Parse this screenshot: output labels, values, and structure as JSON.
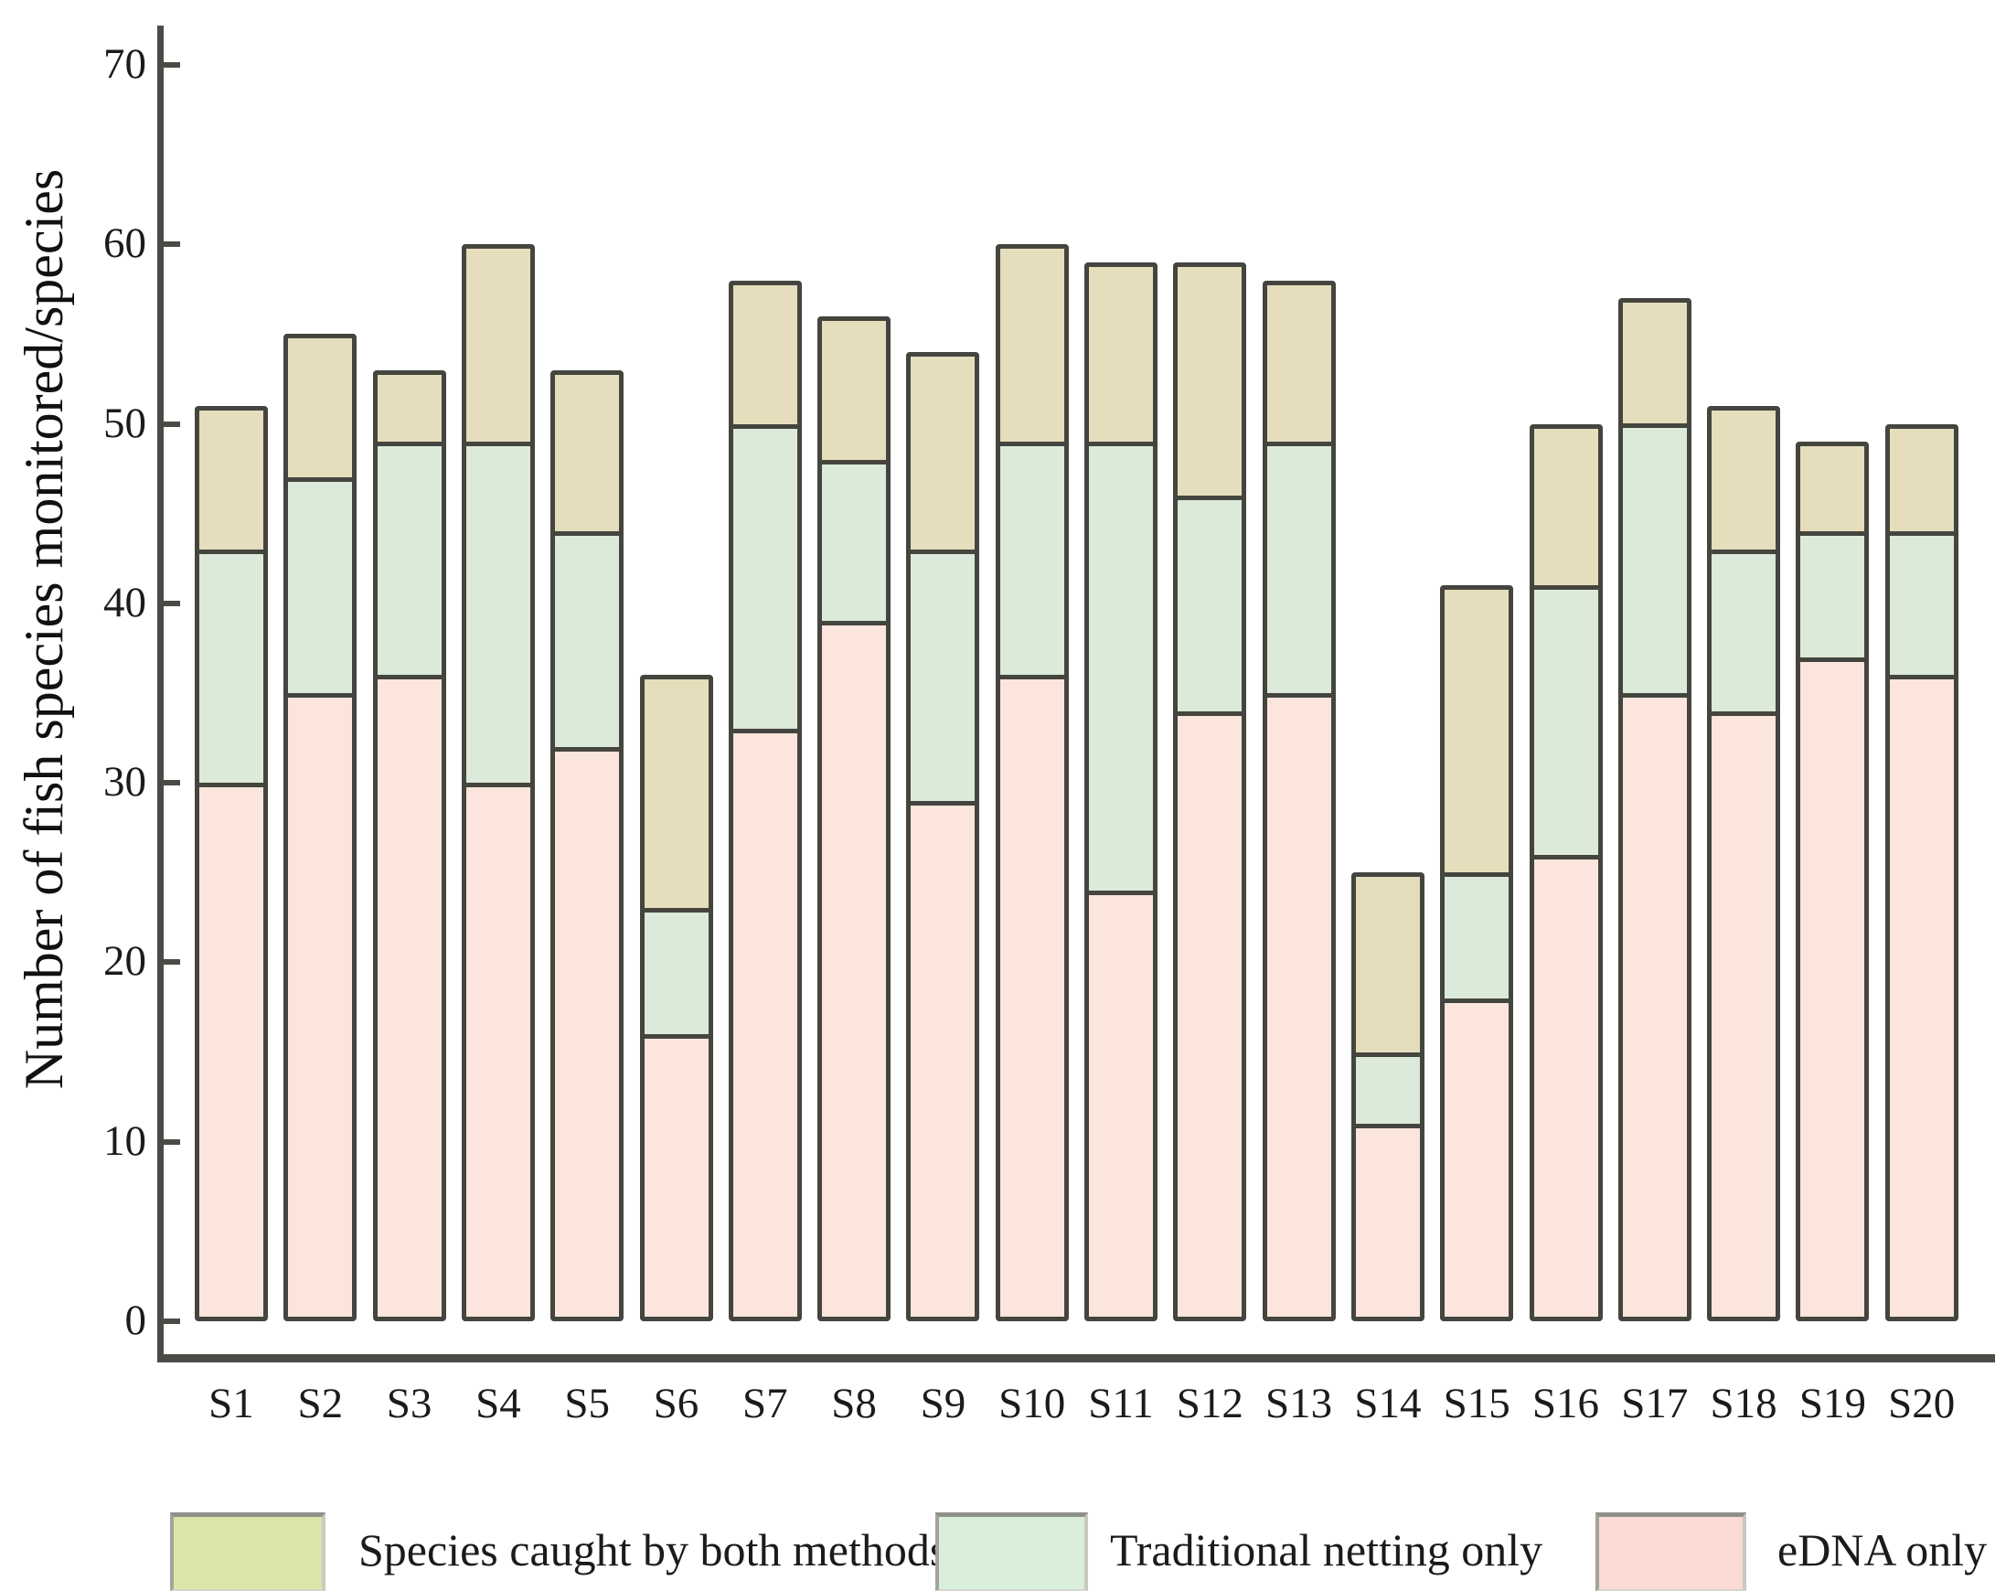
{
  "chart_data": {
    "type": "bar",
    "stacked": true,
    "title": "",
    "xlabel": "",
    "ylabel": "Number of fish species monitored/species",
    "ylim": [
      0,
      70
    ],
    "yticks": [
      0,
      10,
      20,
      30,
      40,
      50,
      60,
      70
    ],
    "grid": false,
    "legend_position": "bottom",
    "categories": [
      "S1",
      "S2",
      "S3",
      "S4",
      "S5",
      "S6",
      "S7",
      "S8",
      "S9",
      "S10",
      "S11",
      "S12",
      "S13",
      "S14",
      "S15",
      "S16",
      "S17",
      "S18",
      "S19",
      "S20"
    ],
    "series": [
      {
        "name": "eDNA only",
        "stack_order": "bottom",
        "bar_color": "#fbe5dc",
        "values": [
          30,
          35,
          36,
          30,
          32,
          16,
          33,
          39,
          29,
          36,
          24,
          34,
          35,
          11,
          18,
          26,
          35,
          34,
          37,
          36
        ]
      },
      {
        "name": "Traditional netting only",
        "stack_order": "middle",
        "bar_color": "#dcead9",
        "values": [
          13,
          12,
          13,
          19,
          12,
          7,
          17,
          9,
          14,
          13,
          25,
          12,
          14,
          4,
          7,
          15,
          15,
          9,
          7,
          8
        ]
      },
      {
        "name": "Species caught by both methods",
        "stack_order": "top",
        "bar_color": "#e5ddbb",
        "values": [
          8,
          8,
          4,
          11,
          9,
          13,
          8,
          8,
          11,
          11,
          10,
          13,
          9,
          10,
          16,
          9,
          7,
          8,
          5,
          6
        ]
      }
    ],
    "stack_totals": [
      51,
      55,
      53,
      60,
      53,
      36,
      58,
      56,
      54,
      60,
      59,
      59,
      58,
      25,
      41,
      50,
      57,
      51,
      49,
      50
    ],
    "legend": [
      {
        "label": "Species caught by both methods",
        "swatch_color": "#dde4aa"
      },
      {
        "label": "Traditional netting only",
        "swatch_color": "#d9eedb"
      },
      {
        "label": "eDNA only",
        "swatch_color": "#fbd9d4"
      }
    ],
    "colors": {
      "bar_outline": "#45453f",
      "axis": "#4b4b46",
      "text": "#1b1b1b"
    }
  }
}
